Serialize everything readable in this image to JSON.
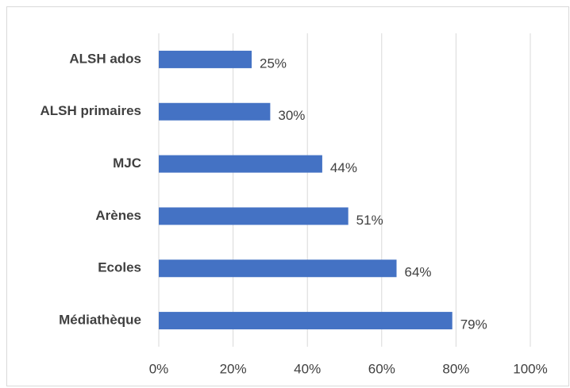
{
  "chart_data": {
    "type": "bar",
    "orientation": "horizontal",
    "categories": [
      "ALSH ados",
      "ALSH primaires",
      "MJC",
      "Arènes",
      "Ecoles",
      "Médiathèque"
    ],
    "values": [
      25,
      30,
      44,
      51,
      64,
      79
    ],
    "value_labels": [
      "25%",
      "30%",
      "44%",
      "51%",
      "64%",
      "79%"
    ],
    "color": "#4472c4",
    "xlim": [
      0,
      100
    ],
    "xticks": [
      {
        "value": 0,
        "label": "0%"
      },
      {
        "value": 20,
        "label": "20%"
      },
      {
        "value": 40,
        "label": "40%"
      },
      {
        "value": 60,
        "label": "60%"
      },
      {
        "value": 80,
        "label": "80%"
      },
      {
        "value": 100,
        "label": "100%"
      }
    ],
    "grid": true
  }
}
